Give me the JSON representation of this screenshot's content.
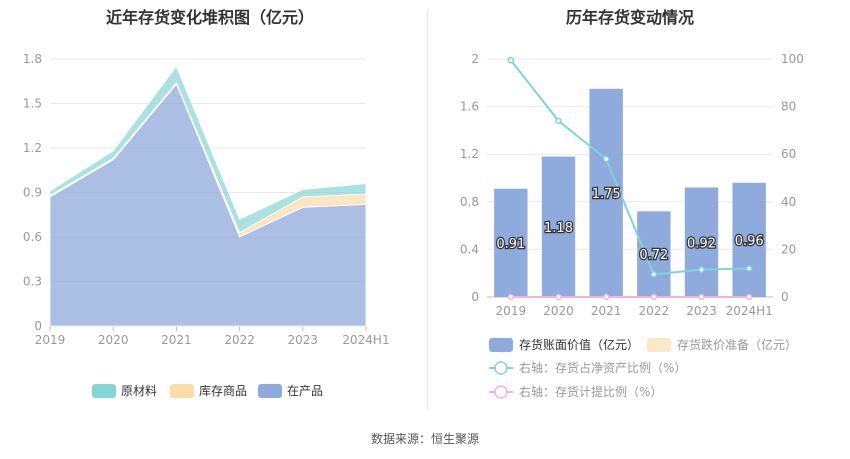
{
  "source": "数据来源：恒生聚源",
  "chart_data": [
    {
      "type": "area",
      "title": "近年存货变化堆积图（亿元）",
      "categories": [
        "2019",
        "2020",
        "2021",
        "2022",
        "2023",
        "2024H1"
      ],
      "stacked": true,
      "ylim": [
        0,
        1.8
      ],
      "yticks": [
        "0",
        "0.3",
        "0.6",
        "0.9",
        "1.2",
        "1.5",
        "1.8"
      ],
      "legend_position": "bottom",
      "series": [
        {
          "name": "在产品",
          "color": "#8faadc",
          "values": [
            0.87,
            1.12,
            1.63,
            0.6,
            0.8,
            0.82
          ]
        },
        {
          "name": "库存商品",
          "color": "#fbdca6",
          "values": [
            0.01,
            0.01,
            0.01,
            0.03,
            0.07,
            0.07
          ]
        },
        {
          "name": "原材料",
          "color": "#86d6d6",
          "values": [
            0.03,
            0.05,
            0.11,
            0.09,
            0.05,
            0.07
          ]
        }
      ],
      "legend_order": [
        "原材料",
        "库存商品",
        "在产品"
      ]
    },
    {
      "type": "bar",
      "title": "历年存货变动情况",
      "categories": [
        "2019",
        "2020",
        "2021",
        "2022",
        "2023",
        "2024H1"
      ],
      "ylim": [
        0,
        2
      ],
      "yticks": [
        "0",
        "0.4",
        "0.8",
        "1.2",
        "1.6",
        "2"
      ],
      "y2lim": [
        0,
        100
      ],
      "y2ticks": [
        "0",
        "20",
        "40",
        "60",
        "80",
        "100"
      ],
      "legend_position": "bottom",
      "series": [
        {
          "name": "存货账面价值（亿元）",
          "kind": "bar",
          "color": "#8faadc",
          "values": [
            0.91,
            1.18,
            1.75,
            0.72,
            0.92,
            0.96
          ],
          "labels": [
            "0.91",
            "1.18",
            "1.75",
            "0.72",
            "0.92",
            "0.96"
          ]
        },
        {
          "name": "存货跌价准备（亿元）",
          "kind": "bar",
          "color": "#fce7c6",
          "values": [
            0,
            0,
            0,
            0,
            0,
            0
          ]
        },
        {
          "name": "右轴：存货占净资产比例（%）",
          "kind": "line",
          "axis": "right",
          "color": "#7fd3d8",
          "values": [
            99.5,
            74,
            58,
            9.5,
            11.5,
            12
          ]
        },
        {
          "name": "右轴：存货计提比例（%）",
          "kind": "line",
          "axis": "right",
          "color": "#f0b4d8",
          "values": [
            0,
            0,
            0,
            0,
            0,
            0
          ]
        }
      ]
    }
  ]
}
